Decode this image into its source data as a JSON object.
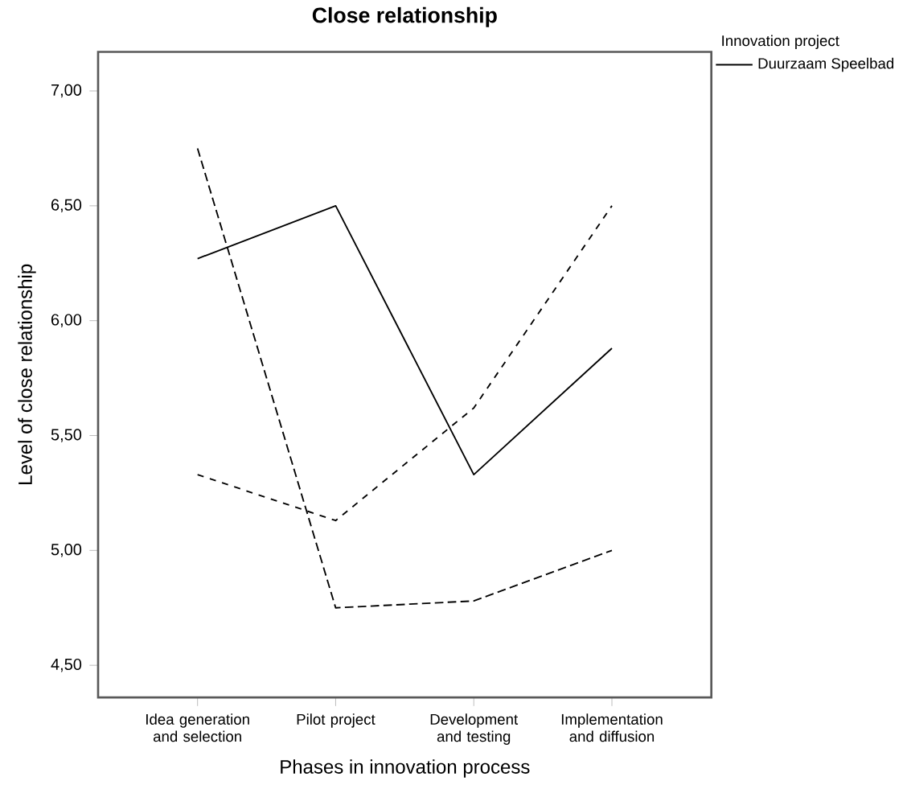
{
  "chart_data": {
    "type": "line",
    "title": "Close relationship",
    "xlabel": "Phases in innovation process",
    "ylabel": "Level of close relationship",
    "legend_title": "Innovation project",
    "legend": "top right",
    "categories": [
      "Idea generation and selection",
      "Pilot project",
      "Development and testing",
      "Implementation and diffusion"
    ],
    "series": [
      {
        "name": "Duurzaam Speelbad",
        "color": "#000000",
        "line_style": "solid",
        "values": [
          6.27,
          6.5,
          5.33,
          5.88
        ]
      },
      {
        "color": "#000000",
        "line_style": "dashed",
        "values": [
          5.33,
          5.13,
          5.62,
          6.5
        ]
      },
      {
        "color": "#000000",
        "line_style": "dashed",
        "values": [
          6.75,
          4.75,
          4.78,
          5.0
        ]
      }
    ],
    "ylim": [
      4.36,
      7.17
    ],
    "yticks": [
      {
        "value": 4.5,
        "label": "4,50"
      },
      {
        "value": 5.0,
        "label": "5,00"
      },
      {
        "value": 5.5,
        "label": "5,50"
      },
      {
        "value": 6.0,
        "label": "6,00"
      },
      {
        "value": 6.5,
        "label": "6,50"
      },
      {
        "value": 7.0,
        "label": "7,00"
      }
    ],
    "grid": false,
    "marker": "none"
  }
}
